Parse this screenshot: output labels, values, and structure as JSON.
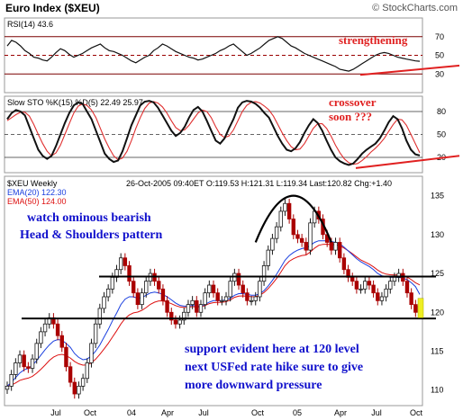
{
  "header": {
    "title": "Euro Index ($XEU)",
    "brand": "© StockCharts.com"
  },
  "chart_data": [
    {
      "type": "line",
      "panel": "rsi",
      "indicator_label": "RSI(14) 43.6",
      "y_ticks": [
        70,
        50,
        30
      ],
      "ylim": [
        10,
        90
      ],
      "series": [
        {
          "values": [
            60,
            66,
            64,
            60,
            55,
            52,
            48,
            47,
            45,
            44,
            48,
            53,
            57,
            55,
            51,
            48,
            50,
            52,
            55,
            58,
            60,
            62,
            58,
            55,
            54,
            52,
            50,
            47,
            44,
            42,
            45,
            48,
            50,
            55,
            58,
            62,
            60,
            57,
            54,
            52,
            50,
            48,
            47,
            45,
            46,
            48,
            50,
            52,
            55,
            57,
            60,
            62,
            58,
            54,
            50,
            52,
            55,
            58,
            62,
            66,
            68,
            70,
            68,
            64,
            60,
            58,
            55,
            52,
            50,
            48,
            46,
            44,
            42,
            40,
            38,
            35,
            34,
            33,
            35,
            38,
            41,
            44,
            47,
            50,
            52,
            53,
            52,
            50,
            48,
            47,
            46,
            45,
            44,
            43.6
          ]
        }
      ],
      "annotations": [
        "strengthening"
      ]
    },
    {
      "type": "line",
      "panel": "stochastic",
      "indicator_label": "Slow STO %K(15) %D(5) 22.49 25.97",
      "y_ticks": [
        80,
        50,
        20
      ],
      "ylim": [
        0,
        100
      ],
      "series": [
        {
          "name": "%K",
          "values": [
            70,
            78,
            82,
            80,
            75,
            60,
            45,
            30,
            22,
            18,
            22,
            35,
            50,
            65,
            78,
            88,
            92,
            90,
            80,
            70,
            55,
            40,
            25,
            18,
            14,
            16,
            28,
            45,
            62,
            75,
            88,
            93,
            94,
            92,
            85,
            75,
            65,
            55,
            48,
            52,
            60,
            72,
            82,
            86,
            80,
            68,
            55,
            42,
            38,
            45,
            58,
            70,
            85,
            92,
            94,
            93,
            90,
            85,
            78,
            72,
            60,
            48,
            38,
            30,
            28,
            32,
            40,
            52,
            62,
            70,
            65,
            55,
            42,
            30,
            20,
            15,
            12,
            10,
            12,
            18,
            25,
            30,
            34,
            38,
            45,
            55,
            66,
            74,
            70,
            58,
            42,
            30,
            24,
            22.49
          ]
        },
        {
          "name": "%D",
          "values": [
            68,
            72,
            76,
            79,
            79,
            74,
            63,
            50,
            38,
            28,
            22,
            26,
            36,
            50,
            64,
            78,
            87,
            90,
            88,
            82,
            72,
            58,
            44,
            32,
            22,
            17,
            19,
            28,
            42,
            58,
            72,
            84,
            91,
            93,
            91,
            86,
            78,
            68,
            59,
            55,
            56,
            62,
            70,
            78,
            82,
            80,
            72,
            60,
            50,
            46,
            48,
            56,
            68,
            80,
            88,
            92,
            93,
            91,
            87,
            82,
            74,
            63,
            52,
            42,
            34,
            30,
            31,
            38,
            48,
            58,
            64,
            64,
            58,
            48,
            36,
            26,
            18,
            13,
            11,
            12,
            16,
            21,
            27,
            32,
            38,
            45,
            54,
            63,
            70,
            69,
            62,
            50,
            38,
            25.97
          ]
        }
      ],
      "annotations": [
        "crossover soon ???"
      ]
    },
    {
      "type": "candlestick",
      "panel": "price",
      "symbol_label": "$XEU Weekly",
      "info": "26-Oct-2005 09:40ET  O:119.53  H:121.31  L:119.34  Last:120.82  Chg:+1.40",
      "legend": [
        "EMA(20) 122.30",
        "EMA(50) 124.00"
      ],
      "y_ticks": [
        135,
        130,
        125,
        120,
        115,
        110
      ],
      "ylim": [
        108,
        137.5
      ],
      "x_ticks": [
        "Jul",
        "Oct",
        "04",
        "Apr",
        "Jul",
        "Oct",
        "05",
        "Apr",
        "Jul",
        "Oct"
      ],
      "close": [
        110.5,
        112,
        113.5,
        114.5,
        113,
        112.8,
        114,
        116,
        117.5,
        118.5,
        119.3,
        118.5,
        117,
        115.5,
        113,
        111,
        109.5,
        110.5,
        111.5,
        113.5,
        116,
        118.5,
        120.5,
        122,
        123,
        124.5,
        125.5,
        127,
        126,
        124,
        122.5,
        121,
        122.5,
        124,
        125,
        124,
        123,
        121.5,
        120,
        119,
        118.5,
        119,
        120,
        121,
        121.5,
        120,
        121,
        122.5,
        123.5,
        122.5,
        121.5,
        121.5,
        122,
        124,
        125,
        123.5,
        122.5,
        121.5,
        121.5,
        122,
        124,
        126,
        128,
        129.5,
        131,
        133,
        134,
        132,
        130,
        129.5,
        129,
        128,
        131.5,
        133,
        132,
        130,
        129,
        128,
        129,
        127,
        125.5,
        124.5,
        124,
        123,
        123,
        124,
        123.5,
        122.5,
        121.5,
        122,
        123,
        124,
        124.5,
        125,
        124,
        122.5,
        121,
        120,
        120.8
      ],
      "ema20": [
        110.5,
        111,
        111.6,
        112.2,
        112.6,
        112.8,
        113.2,
        113.8,
        114.5,
        115.2,
        115.8,
        116.3,
        116.5,
        116.4,
        116,
        115.5,
        114.7,
        114.2,
        113.9,
        114,
        114.4,
        115,
        115.8,
        116.8,
        117.8,
        118.9,
        119.9,
        121,
        121.7,
        122,
        122,
        121.8,
        121.9,
        122.2,
        122.5,
        122.6,
        122.5,
        122.3,
        122,
        121.6,
        121.2,
        120.9,
        120.8,
        120.8,
        120.9,
        120.8,
        120.8,
        121,
        121.3,
        121.5,
        121.5,
        121.5,
        121.6,
        121.8,
        122.2,
        122.4,
        122.4,
        122.3,
        122.2,
        122.2,
        122.4,
        122.8,
        123.4,
        124.1,
        124.9,
        125.8,
        126.7,
        127.3,
        127.7,
        128,
        128.2,
        128.3,
        128.6,
        129,
        129.2,
        129.2,
        129.2,
        129.1,
        129,
        128.8,
        128.4,
        127.9,
        127.4,
        126.9,
        126.5,
        126.2,
        125.9,
        125.5,
        125,
        124.7,
        124.6,
        124.5,
        124.5,
        124.5,
        124.4,
        124.2,
        123.8,
        123.3,
        122.3
      ]
    }
  ],
  "price_annotations": {
    "head_shoulders": "watch ominous bearish\nHead & Shoulders pattern",
    "support": "support evident here at 120 level",
    "fed": "next USFed rate hike sure to give",
    "pressure": "more downward pressure"
  },
  "colors": {
    "rsi_band": "#990000",
    "red": "#e02020",
    "blue_text": "#1010cc",
    "candle_up": "#1a1a1a",
    "candle_down": "#aa0000",
    "ema20": "#1a3fdf",
    "ema50": "#dd1111"
  }
}
